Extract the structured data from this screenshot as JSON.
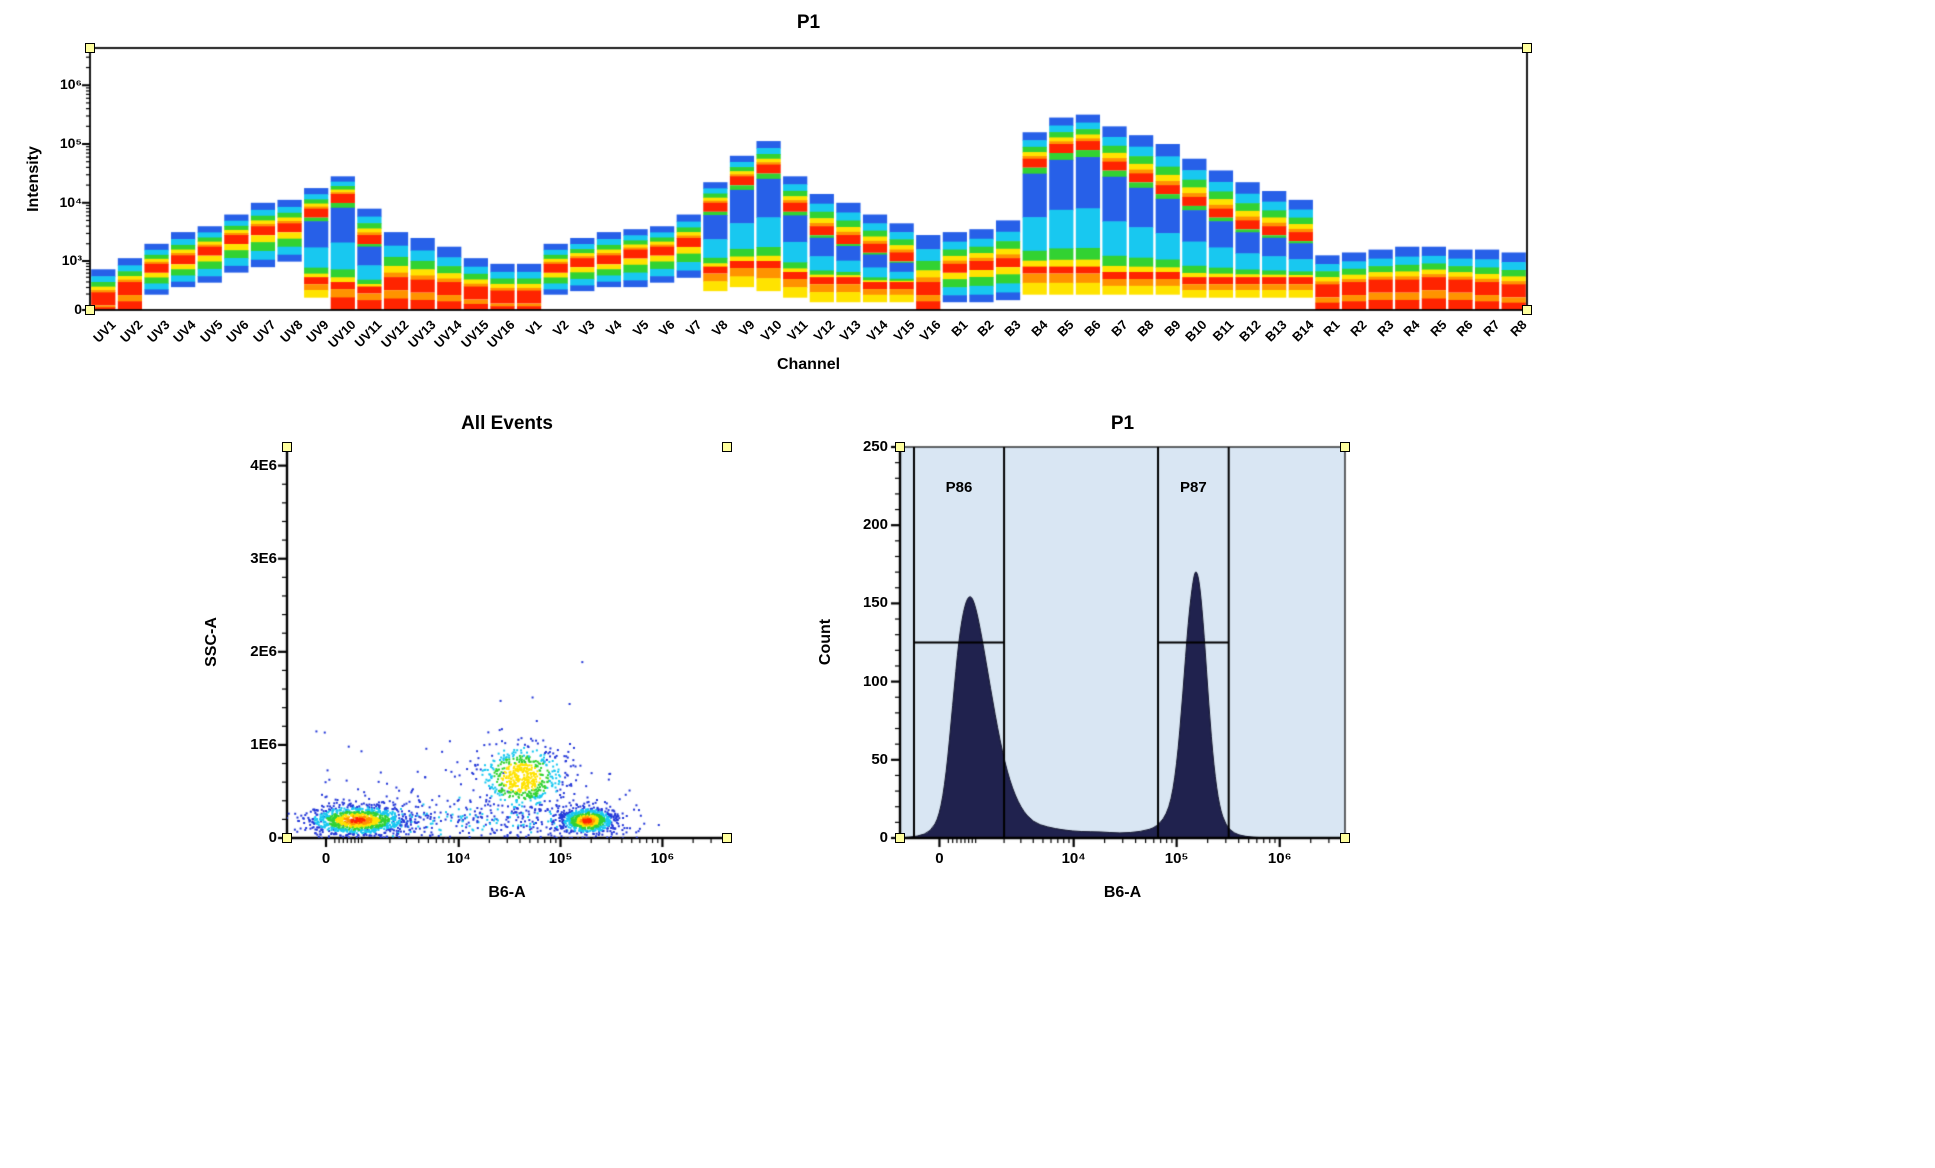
{
  "palette": {
    "blue": "#2760e8",
    "cyan": "#18c8f0",
    "green": "#32d232",
    "yellow": "#ffe300",
    "orange": "#ff9300",
    "red": "#ff2400"
  },
  "density_levels": [
    "#ff2400",
    "#ff9300",
    "#ffe300",
    "#32d232",
    "#18c8f0",
    "#2438d8"
  ],
  "handle_color": "#ffff9e",
  "chart_data": [
    {
      "type": "heatmap",
      "title": "P1",
      "xlabel": "Channel",
      "ylabel": "Intensity",
      "yscale": "asinh",
      "ylim": [
        0,
        4300000
      ],
      "yticks": [
        {
          "v": 0,
          "label": "0"
        },
        {
          "v": 1000,
          "label": "10³"
        },
        {
          "v": 10000,
          "label": "10⁴"
        },
        {
          "v": 100000,
          "label": "10⁵"
        },
        {
          "v": 1000000,
          "label": "10⁶"
        }
      ],
      "channels": [
        {
          "name": "UV1",
          "t": 2.85,
          "m": 2.35,
          "b": 0,
          "mode": "warm"
        },
        {
          "name": "UV2",
          "t": 3.05,
          "m": 2.6,
          "b": 0,
          "mode": "warm"
        },
        {
          "name": "UV3",
          "t": 3.3,
          "m": 2.95,
          "b": 2.3
        },
        {
          "name": "UV4",
          "t": 3.5,
          "m": 3.1,
          "b": 2.5
        },
        {
          "name": "UV5",
          "t": 3.6,
          "m": 3.25,
          "b": 2.6
        },
        {
          "name": "UV6",
          "t": 3.8,
          "m": 3.45,
          "b": 2.8
        },
        {
          "name": "UV7",
          "t": 4.0,
          "m": 3.6,
          "b": 2.9
        },
        {
          "name": "UV8",
          "t": 4.05,
          "m": 3.65,
          "b": 3.0
        },
        {
          "name": "UV9",
          "t": 4.25,
          "m": 3.9,
          "m2": 2.7,
          "b": 2.2
        },
        {
          "name": "UV10",
          "t": 4.45,
          "m": 4.15,
          "m2": 2.6,
          "b": 0
        },
        {
          "name": "UV11",
          "t": 3.9,
          "m": 3.45,
          "m2": 2.5,
          "b": 0
        },
        {
          "name": "UV12",
          "t": 3.5,
          "m": 2.7,
          "b": 0,
          "mode": "warm"
        },
        {
          "name": "UV13",
          "t": 3.4,
          "m": 2.65,
          "b": 0,
          "mode": "warm"
        },
        {
          "name": "UV14",
          "t": 3.25,
          "m": 2.6,
          "b": 0,
          "mode": "warm"
        },
        {
          "name": "UV15",
          "t": 3.05,
          "m": 2.5,
          "b": 0,
          "mode": "warm"
        },
        {
          "name": "UV16",
          "t": 2.95,
          "m": 2.4,
          "b": 0,
          "mode": "warm"
        },
        {
          "name": "V1",
          "t": 2.95,
          "m": 2.4,
          "b": 0,
          "mode": "warm"
        },
        {
          "name": "V2",
          "t": 3.3,
          "m": 2.95,
          "b": 2.3
        },
        {
          "name": "V3",
          "t": 3.4,
          "m": 3.05,
          "b": 2.4
        },
        {
          "name": "V4",
          "t": 3.5,
          "m": 3.1,
          "b": 2.5
        },
        {
          "name": "V5",
          "t": 3.55,
          "m": 3.2,
          "b": 2.5
        },
        {
          "name": "V6",
          "t": 3.6,
          "m": 3.25,
          "b": 2.6
        },
        {
          "name": "V7",
          "t": 3.8,
          "m": 3.4,
          "b": 2.7
        },
        {
          "name": "V8",
          "t": 4.35,
          "m": 4.0,
          "m2": 2.9,
          "b": 2.4
        },
        {
          "name": "V9",
          "t": 4.8,
          "m": 4.45,
          "m2": 3.0,
          "b": 2.5
        },
        {
          "name": "V10",
          "t": 5.05,
          "m": 4.65,
          "m2": 3.0,
          "b": 2.4
        },
        {
          "name": "V11",
          "t": 4.45,
          "m": 4.0,
          "m2": 2.8,
          "b": 2.2
        },
        {
          "name": "V12",
          "t": 4.15,
          "m": 3.6,
          "m2": 2.7,
          "b": 2.0
        },
        {
          "name": "V13",
          "t": 4.0,
          "m": 3.45,
          "m2": 2.7,
          "b": 2.0
        },
        {
          "name": "V14",
          "t": 3.8,
          "m": 3.3,
          "m2": 2.6,
          "b": 2.0
        },
        {
          "name": "V15",
          "t": 3.65,
          "m": 3.15,
          "m2": 2.6,
          "b": 2.0
        },
        {
          "name": "V16",
          "t": 3.45,
          "m": 2.6,
          "b": 0,
          "mode": "warm"
        },
        {
          "name": "B1",
          "t": 3.5,
          "m": 2.95,
          "b": 2.0
        },
        {
          "name": "B2",
          "t": 3.55,
          "m": 3.0,
          "b": 2.0
        },
        {
          "name": "B3",
          "t": 3.7,
          "m": 3.05,
          "b": 2.1
        },
        {
          "name": "B4",
          "t": 5.2,
          "m": 4.75,
          "m2": 2.9,
          "b": 2.3
        },
        {
          "name": "B5",
          "t": 5.45,
          "m": 5.0,
          "m2": 2.9,
          "b": 2.3
        },
        {
          "name": "B6",
          "t": 5.5,
          "m": 5.05,
          "m2": 2.9,
          "b": 2.3
        },
        {
          "name": "B7",
          "t": 5.3,
          "m": 4.7,
          "m2": 2.8,
          "b": 2.3
        },
        {
          "name": "B8",
          "t": 5.15,
          "m": 4.5,
          "m2": 2.8,
          "b": 2.3
        },
        {
          "name": "B9",
          "t": 5.0,
          "m": 4.3,
          "m2": 2.8,
          "b": 2.3
        },
        {
          "name": "B10",
          "t": 4.75,
          "m": 4.1,
          "m2": 2.7,
          "b": 2.2
        },
        {
          "name": "B11",
          "t": 4.55,
          "m": 3.9,
          "m2": 2.7,
          "b": 2.2
        },
        {
          "name": "B12",
          "t": 4.35,
          "m": 3.7,
          "m2": 2.7,
          "b": 2.2
        },
        {
          "name": "B13",
          "t": 4.2,
          "m": 3.6,
          "m2": 2.7,
          "b": 2.2
        },
        {
          "name": "B14",
          "t": 4.05,
          "m": 3.5,
          "m2": 2.7,
          "b": 2.2
        },
        {
          "name": "R1",
          "t": 3.1,
          "m": 2.55,
          "b": 0,
          "mode": "warm"
        },
        {
          "name": "R2",
          "t": 3.15,
          "m": 2.6,
          "b": 0,
          "mode": "warm"
        },
        {
          "name": "R3",
          "t": 3.2,
          "m": 2.65,
          "b": 0,
          "mode": "warm"
        },
        {
          "name": "R4",
          "t": 3.25,
          "m": 2.65,
          "b": 0,
          "mode": "warm"
        },
        {
          "name": "R5",
          "t": 3.25,
          "m": 2.7,
          "b": 0,
          "mode": "warm"
        },
        {
          "name": "R6",
          "t": 3.2,
          "m": 2.65,
          "b": 0,
          "mode": "warm"
        },
        {
          "name": "R7",
          "t": 3.2,
          "m": 2.6,
          "b": 0,
          "mode": "warm"
        },
        {
          "name": "R8",
          "t": 3.15,
          "m": 2.55,
          "b": 0,
          "mode": "warm"
        }
      ]
    },
    {
      "type": "scatter",
      "title": "All Events",
      "xlabel": "B6-A",
      "ylabel": "SSC-A",
      "xscale": "asinh",
      "xlim": [
        -1000,
        4300000
      ],
      "ylim": [
        0,
        4200000
      ],
      "xticks": [
        {
          "v": 0,
          "label": "0"
        },
        {
          "v": 10000,
          "label": "10⁴"
        },
        {
          "v": 100000,
          "label": "10⁵"
        },
        {
          "v": 1000000,
          "label": "10⁶"
        }
      ],
      "yticks": [
        {
          "v": 0,
          "label": "0"
        },
        {
          "v": 1000000,
          "label": "1E6"
        },
        {
          "v": 2000000,
          "label": "2E6"
        },
        {
          "v": 3000000,
          "label": "3E6"
        },
        {
          "v": 4000000,
          "label": "4E6"
        }
      ],
      "clusters": [
        {
          "name": "negative-population",
          "cx": 750,
          "cy": 200000,
          "sx": 0.55,
          "sy": 80000,
          "n": 1100,
          "hot": 0
        },
        {
          "name": "mid-population",
          "cx": 40000,
          "cy": 660000,
          "sx": 0.5,
          "sy": 180000,
          "n": 650,
          "hot": 2
        },
        {
          "name": "positive-population",
          "cx": 180000,
          "cy": 195000,
          "sx": 0.3,
          "sy": 70000,
          "n": 900,
          "hot": 0
        }
      ],
      "bridge": {
        "x_range": [
          2000,
          130000
        ],
        "cy": 210000,
        "sy": 90000,
        "n": 170
      },
      "sparse": {
        "n": 300,
        "y_scale": 260000,
        "y_max": 1900000
      },
      "extra_points": [
        [
          160000,
          1900000
        ],
        [
          52000,
          1520000
        ],
        [
          120000,
          1450000
        ],
        [
          26000,
          1180000
        ],
        [
          8000,
          1050000
        ],
        [
          300000,
          700000
        ],
        [
          600000,
          250000
        ],
        [
          900000,
          150000
        ]
      ]
    },
    {
      "type": "histogram",
      "title": "P1",
      "xlabel": "B6-A",
      "ylabel": "Count",
      "xscale": "asinh",
      "xlim": [
        -1000,
        4300000
      ],
      "ylim": [
        0,
        250
      ],
      "plot_bg": "#d9e6f3",
      "fill": "#20224e",
      "line": "#14162e",
      "xticks": [
        {
          "v": 0,
          "label": "0"
        },
        {
          "v": 10000,
          "label": "10⁴"
        },
        {
          "v": 100000,
          "label": "10⁵"
        },
        {
          "v": 1000000,
          "label": "10⁶"
        }
      ],
      "yticks": [
        {
          "v": 0,
          "label": "0"
        },
        {
          "v": 50,
          "label": "50"
        },
        {
          "v": 100,
          "label": "100"
        },
        {
          "v": 150,
          "label": "150"
        },
        {
          "v": 200,
          "label": "200"
        },
        {
          "v": 250,
          "label": "250"
        }
      ],
      "points": [
        [
          -1000,
          0
        ],
        [
          -500,
          1
        ],
        [
          -200,
          4
        ],
        [
          0,
          14
        ],
        [
          150,
          40
        ],
        [
          300,
          85
        ],
        [
          450,
          128
        ],
        [
          600,
          150
        ],
        [
          750,
          156
        ],
        [
          900,
          148
        ],
        [
          1100,
          128
        ],
        [
          1400,
          96
        ],
        [
          1800,
          62
        ],
        [
          2300,
          36
        ],
        [
          3000,
          19
        ],
        [
          4000,
          10
        ],
        [
          5500,
          7
        ],
        [
          8000,
          5
        ],
        [
          12000,
          4
        ],
        [
          18000,
          4
        ],
        [
          28000,
          3
        ],
        [
          45000,
          4
        ],
        [
          65000,
          7
        ],
        [
          85000,
          18
        ],
        [
          100000,
          45
        ],
        [
          115000,
          92
        ],
        [
          130000,
          140
        ],
        [
          145000,
          166
        ],
        [
          155000,
          172
        ],
        [
          168000,
          162
        ],
        [
          185000,
          130
        ],
        [
          205000,
          85
        ],
        [
          230000,
          45
        ],
        [
          260000,
          20
        ],
        [
          300000,
          8
        ],
        [
          360000,
          3
        ],
        [
          450000,
          1
        ],
        [
          700000,
          0
        ],
        [
          4300000,
          0
        ]
      ],
      "gates": [
        {
          "label": "P86",
          "x1": -600,
          "x2": 2000,
          "y": 125
        },
        {
          "label": "P87",
          "x1": 66000,
          "x2": 320000,
          "y": 125
        }
      ]
    }
  ]
}
